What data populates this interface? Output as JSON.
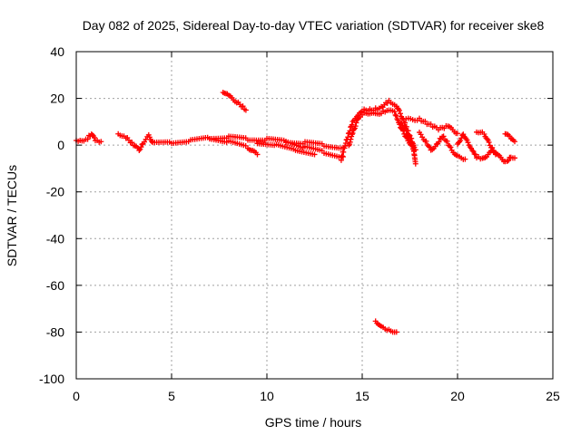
{
  "chart_data": {
    "type": "scatter",
    "title": "Day 082 of 2025, Sidereal Day-to-day VTEC variation (SDTVAR) for receiver ske8",
    "xlabel": "GPS time / hours",
    "ylabel": "SDTVAR / TECUs",
    "xlim": [
      0,
      25
    ],
    "ylim": [
      -100,
      40
    ],
    "xticks": [
      "0",
      "5",
      "10",
      "15",
      "20",
      "25"
    ],
    "yticks": [
      "40",
      "20",
      "0",
      "-20",
      "-40",
      "-60",
      "-80",
      "-100"
    ],
    "grid": true,
    "marker": "plus",
    "color": "#ff0000",
    "series": [
      {
        "name": "SDTVAR",
        "segments": [
          [
            [
              0.0,
              2
            ],
            [
              0.3,
              1.5
            ],
            [
              0.6,
              3
            ],
            [
              0.8,
              5
            ],
            [
              1.0,
              2
            ],
            [
              1.3,
              1.5
            ]
          ],
          [
            [
              2.2,
              5
            ],
            [
              2.6,
              3.5
            ],
            [
              3.0,
              0
            ],
            [
              3.3,
              -2
            ],
            [
              3.5,
              1
            ],
            [
              3.8,
              4
            ],
            [
              4.0,
              1.5
            ]
          ],
          [
            [
              4.0,
              1
            ],
            [
              5.0,
              1
            ],
            [
              6.0,
              2
            ],
            [
              7.0,
              3
            ],
            [
              8.0,
              3.5
            ],
            [
              9.0,
              2.5
            ],
            [
              10.0,
              2.5
            ],
            [
              11.0,
              1.5
            ],
            [
              12.0,
              1
            ],
            [
              13.0,
              0
            ],
            [
              14.0,
              -1
            ]
          ],
          [
            [
              7.0,
              3
            ],
            [
              8.0,
              1.5
            ],
            [
              9.0,
              -1
            ],
            [
              9.5,
              -4
            ]
          ],
          [
            [
              9.5,
              1
            ],
            [
              10.5,
              0
            ],
            [
              11.5,
              -2
            ],
            [
              12.5,
              -4
            ]
          ],
          [
            [
              11.0,
              2
            ],
            [
              12.0,
              -1
            ],
            [
              13.0,
              -3
            ],
            [
              14.0,
              -5
            ]
          ],
          [
            [
              7.7,
              23
            ],
            [
              8.0,
              21
            ],
            [
              8.5,
              18
            ],
            [
              8.9,
              15
            ]
          ],
          [
            [
              13.9,
              -6
            ],
            [
              14.1,
              0
            ],
            [
              14.5,
              10
            ],
            [
              15.0,
              15
            ],
            [
              15.5,
              15
            ],
            [
              16.0,
              16
            ],
            [
              16.4,
              19
            ],
            [
              16.8,
              17
            ],
            [
              17.2,
              10
            ],
            [
              17.5,
              4
            ],
            [
              17.7,
              0
            ]
          ],
          [
            [
              14.3,
              0
            ],
            [
              14.5,
              5
            ],
            [
              14.8,
              12
            ],
            [
              15.2,
              14
            ],
            [
              15.8,
              13
            ],
            [
              16.3,
              15
            ],
            [
              16.7,
              14
            ],
            [
              17.0,
              8
            ],
            [
              17.4,
              2
            ],
            [
              17.8,
              -2
            ]
          ],
          [
            [
              17.0,
              10
            ],
            [
              17.3,
              6
            ],
            [
              17.6,
              0
            ],
            [
              17.7,
              -2
            ],
            [
              17.8,
              -8
            ]
          ],
          [
            [
              17.3,
              11
            ],
            [
              18.0,
              11
            ],
            [
              18.5,
              9
            ],
            [
              19.0,
              7
            ],
            [
              19.5,
              8
            ],
            [
              20.0,
              5
            ]
          ],
          [
            [
              18.0,
              5
            ],
            [
              18.3,
              2
            ],
            [
              18.6,
              -2
            ],
            [
              18.9,
              0
            ],
            [
              19.2,
              4
            ],
            [
              19.4,
              2
            ],
            [
              19.7,
              -2
            ],
            [
              20.0,
              -5
            ],
            [
              20.4,
              -6
            ]
          ],
          [
            [
              20.0,
              0
            ],
            [
              20.3,
              5
            ],
            [
              20.6,
              0
            ],
            [
              21.0,
              -5
            ],
            [
              21.3,
              -6
            ],
            [
              21.6,
              -4
            ],
            [
              21.9,
              -2
            ],
            [
              22.2,
              -5
            ],
            [
              22.5,
              -7
            ]
          ],
          [
            [
              21.0,
              6
            ],
            [
              21.4,
              5
            ],
            [
              21.7,
              0
            ],
            [
              22.0,
              -4
            ]
          ],
          [
            [
              22.5,
              5
            ],
            [
              22.8,
              3
            ],
            [
              23.0,
              1.5
            ]
          ],
          [
            [
              22.6,
              -7
            ],
            [
              22.8,
              -5
            ],
            [
              23.0,
              -5.5
            ]
          ],
          [
            [
              15.7,
              -75
            ],
            [
              16.0,
              -78
            ],
            [
              16.4,
              -79
            ],
            [
              16.8,
              -80
            ]
          ]
        ]
      }
    ]
  }
}
